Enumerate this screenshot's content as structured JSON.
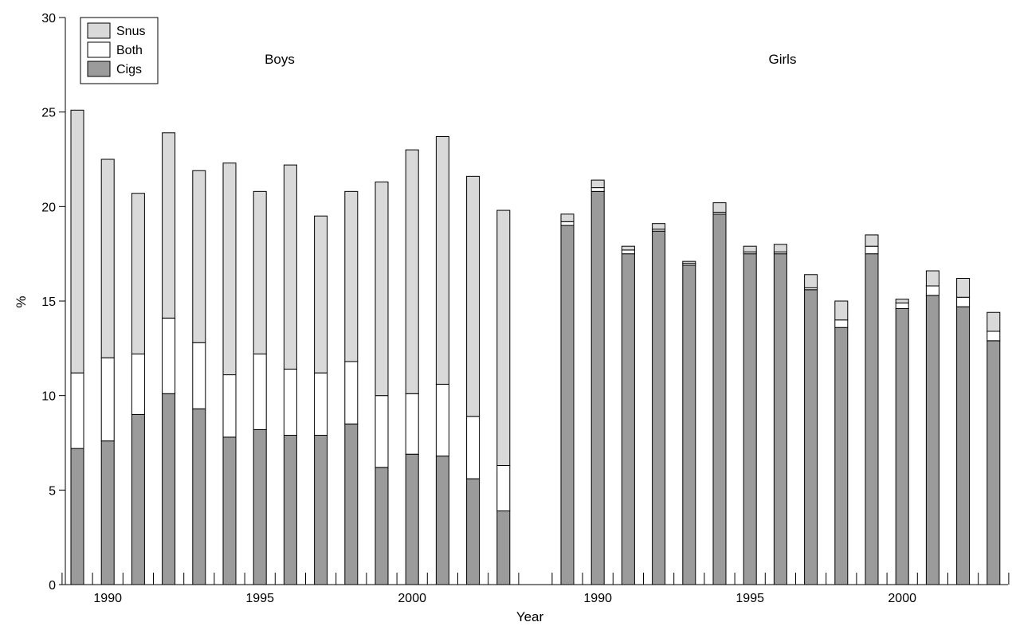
{
  "colors": {
    "Snus": "#d9d9d9",
    "Both": "#ffffff",
    "Cigs": "#9b9b9b",
    "stroke": "#000000"
  },
  "chart_data": {
    "type": "bar",
    "stacked": true,
    "xlabel": "Year",
    "ylabel": "%",
    "ylim": [
      0,
      30
    ],
    "yticks": [
      0,
      5,
      10,
      15,
      20,
      25,
      30
    ],
    "legend": {
      "placement": "top-left",
      "entries": [
        "Snus",
        "Both",
        "Cigs"
      ]
    },
    "panels": [
      {
        "label": "Boys",
        "categories": [
          1989,
          1990,
          1991,
          1992,
          1993,
          1994,
          1995,
          1996,
          1997,
          1998,
          1999,
          2000,
          2001,
          2002,
          2003
        ],
        "xtick_labels": [
          {
            "year": 1990,
            "label": "1990"
          },
          {
            "year": 1995,
            "label": "1995"
          },
          {
            "year": 2000,
            "label": "2000"
          }
        ],
        "series": [
          {
            "name": "Cigs",
            "values": [
              7.2,
              7.6,
              9.0,
              10.1,
              9.3,
              7.8,
              8.2,
              7.9,
              7.9,
              8.5,
              6.2,
              6.9,
              6.8,
              5.6,
              3.9
            ]
          },
          {
            "name": "Both",
            "values": [
              4.0,
              4.4,
              3.2,
              4.0,
              3.5,
              3.3,
              4.0,
              3.5,
              3.3,
              3.3,
              3.8,
              3.2,
              3.8,
              3.3,
              2.4
            ]
          },
          {
            "name": "Snus",
            "values": [
              13.9,
              10.5,
              8.5,
              9.8,
              9.1,
              11.2,
              8.6,
              10.8,
              8.3,
              9.0,
              11.3,
              12.9,
              13.1,
              12.7,
              13.5
            ]
          }
        ]
      },
      {
        "label": "Girls",
        "categories": [
          1989,
          1990,
          1991,
          1992,
          1993,
          1994,
          1995,
          1996,
          1997,
          1998,
          1999,
          2000,
          2001,
          2002,
          2003
        ],
        "xtick_labels": [
          {
            "year": 1990,
            "label": "1990"
          },
          {
            "year": 1995,
            "label": "1995"
          },
          {
            "year": 2000,
            "label": "2000"
          }
        ],
        "series": [
          {
            "name": "Cigs",
            "values": [
              19.0,
              20.8,
              17.5,
              18.7,
              16.9,
              19.6,
              17.5,
              17.5,
              15.6,
              13.6,
              17.5,
              14.6,
              15.3,
              14.7,
              12.9
            ]
          },
          {
            "name": "Both",
            "values": [
              0.2,
              0.2,
              0.2,
              0.1,
              0.1,
              0.1,
              0.1,
              0.1,
              0.1,
              0.4,
              0.4,
              0.3,
              0.5,
              0.5,
              0.5
            ]
          },
          {
            "name": "Snus",
            "values": [
              0.4,
              0.4,
              0.2,
              0.3,
              0.1,
              0.5,
              0.3,
              0.4,
              0.7,
              1.0,
              0.6,
              0.2,
              0.8,
              1.0,
              1.0
            ]
          }
        ]
      }
    ]
  }
}
